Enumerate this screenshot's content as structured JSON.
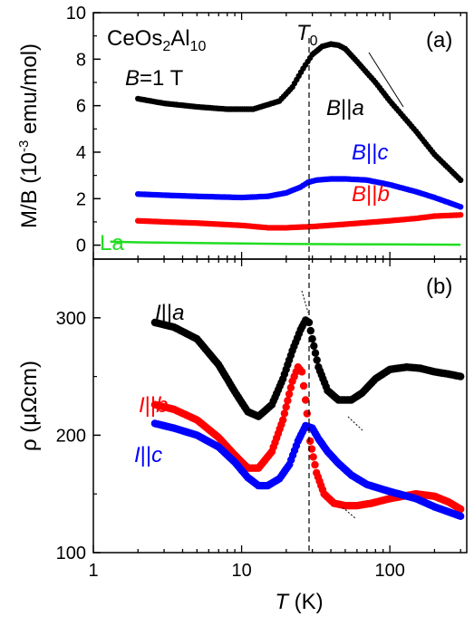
{
  "chart_data": [
    {
      "id": "a",
      "type": "scatter",
      "panel_label": "(a)",
      "ylabel": "M/B (10⁻³ emu/mol)",
      "ylabel_parts": {
        "prefix": "M/B (10",
        "exp": "-3",
        "suffix": " emu/mol)"
      },
      "xlabel": "",
      "xscale": "log",
      "xlim": [
        1,
        330
      ],
      "ylim": [
        -0.6,
        10
      ],
      "yticks": [
        0,
        2,
        4,
        6,
        8,
        10
      ],
      "annotations": {
        "compound": {
          "pre": "CeOs",
          "s1": "2",
          "mid": "Al",
          "s2": "10"
        },
        "field": {
          "var": "B",
          "rest": "=1 T"
        },
        "transition": {
          "var": "T",
          "sub": "0",
          "x": 28.5
        }
      },
      "series": [
        {
          "name": "B||a",
          "label_var": "B",
          "label_rest": "||a",
          "color": "#000000",
          "x": [
            2,
            3,
            5,
            8,
            12,
            18,
            22,
            26,
            30,
            35,
            40,
            45,
            50,
            60,
            80,
            100,
            150,
            200,
            300
          ],
          "y": [
            6.3,
            6.1,
            5.95,
            5.85,
            5.85,
            6.2,
            6.8,
            7.6,
            8.2,
            8.55,
            8.65,
            8.6,
            8.45,
            7.9,
            7.0,
            6.2,
            4.9,
            3.9,
            2.8
          ]
        },
        {
          "name": "B||c",
          "label_var": "B",
          "label_rest": "||c",
          "color": "#0000ff",
          "x": [
            2,
            3,
            5,
            10,
            15,
            20,
            25,
            28,
            32,
            40,
            50,
            70,
            100,
            150,
            200,
            300
          ],
          "y": [
            2.2,
            2.15,
            2.1,
            2.05,
            2.1,
            2.25,
            2.5,
            2.7,
            2.8,
            2.85,
            2.85,
            2.8,
            2.6,
            2.3,
            2.05,
            1.65
          ]
        },
        {
          "name": "B||b",
          "label_var": "B",
          "label_rest": "||b",
          "color": "#ff0000",
          "x": [
            2,
            3,
            5,
            10,
            15,
            20,
            30,
            50,
            100,
            150,
            200,
            300
          ],
          "y": [
            1.05,
            1.0,
            0.95,
            0.85,
            0.75,
            0.75,
            0.8,
            0.9,
            1.05,
            1.15,
            1.25,
            1.3
          ]
        },
        {
          "name": "La",
          "label_var": "",
          "label_rest": "La",
          "color": "#22dd22",
          "style": "line",
          "x": [
            1.3,
            2,
            5,
            10,
            20,
            50,
            100,
            300
          ],
          "y": [
            0.15,
            0.12,
            0.09,
            0.07,
            0.05,
            0.04,
            0.03,
            0.02
          ]
        }
      ]
    },
    {
      "id": "b",
      "type": "scatter",
      "panel_label": "(b)",
      "ylabel": "ρ (μΩcm)",
      "xlabel": "T (K)",
      "xlabel_parts": {
        "var": "T",
        "rest": " (K)"
      },
      "xscale": "log",
      "xlim": [
        1,
        330
      ],
      "ylim": [
        100,
        350
      ],
      "yticks": [
        100,
        200,
        300
      ],
      "xticks": [
        1,
        10,
        100
      ],
      "series": [
        {
          "name": "I||a",
          "label_var": "I",
          "label_rest": "||a",
          "color": "#000000",
          "x": [
            2.6,
            3.5,
            5,
            7,
            9,
            11,
            13,
            16,
            19,
            22,
            25,
            27,
            28.5,
            30,
            33,
            38,
            45,
            55,
            65,
            80,
            100,
            130,
            160,
            200,
            250,
            300
          ],
          "y": [
            296,
            292,
            282,
            260,
            237,
            220,
            216,
            226,
            248,
            272,
            290,
            298,
            296,
            282,
            258,
            238,
            230,
            230,
            236,
            248,
            256,
            258,
            257,
            254,
            252,
            250
          ]
        },
        {
          "name": "I||b",
          "label_var": "I",
          "label_rest": "||b",
          "color": "#ff0000",
          "x": [
            2.6,
            3.5,
            5,
            7,
            9,
            11,
            13,
            16,
            19,
            22,
            24,
            25.5,
            27,
            29,
            32,
            36,
            42,
            50,
            60,
            75,
            100,
            150,
            200,
            250,
            300
          ],
          "y": [
            226,
            222,
            213,
            198,
            183,
            172,
            172,
            186,
            213,
            246,
            258,
            254,
            230,
            195,
            168,
            150,
            142,
            140,
            140,
            142,
            146,
            150,
            148,
            143,
            137
          ]
        },
        {
          "name": "I||c",
          "label_var": "I",
          "label_rest": "||c",
          "color": "#0000ff",
          "x": [
            2.6,
            3.5,
            5,
            7,
            9,
            11,
            13,
            15,
            18,
            21,
            24,
            27,
            30,
            33,
            38,
            45,
            55,
            70,
            100,
            150,
            200,
            300
          ],
          "y": [
            210,
            206,
            200,
            190,
            177,
            164,
            157,
            157,
            163,
            175,
            195,
            208,
            206,
            197,
            186,
            176,
            166,
            158,
            152,
            146,
            139,
            131
          ]
        }
      ]
    }
  ]
}
